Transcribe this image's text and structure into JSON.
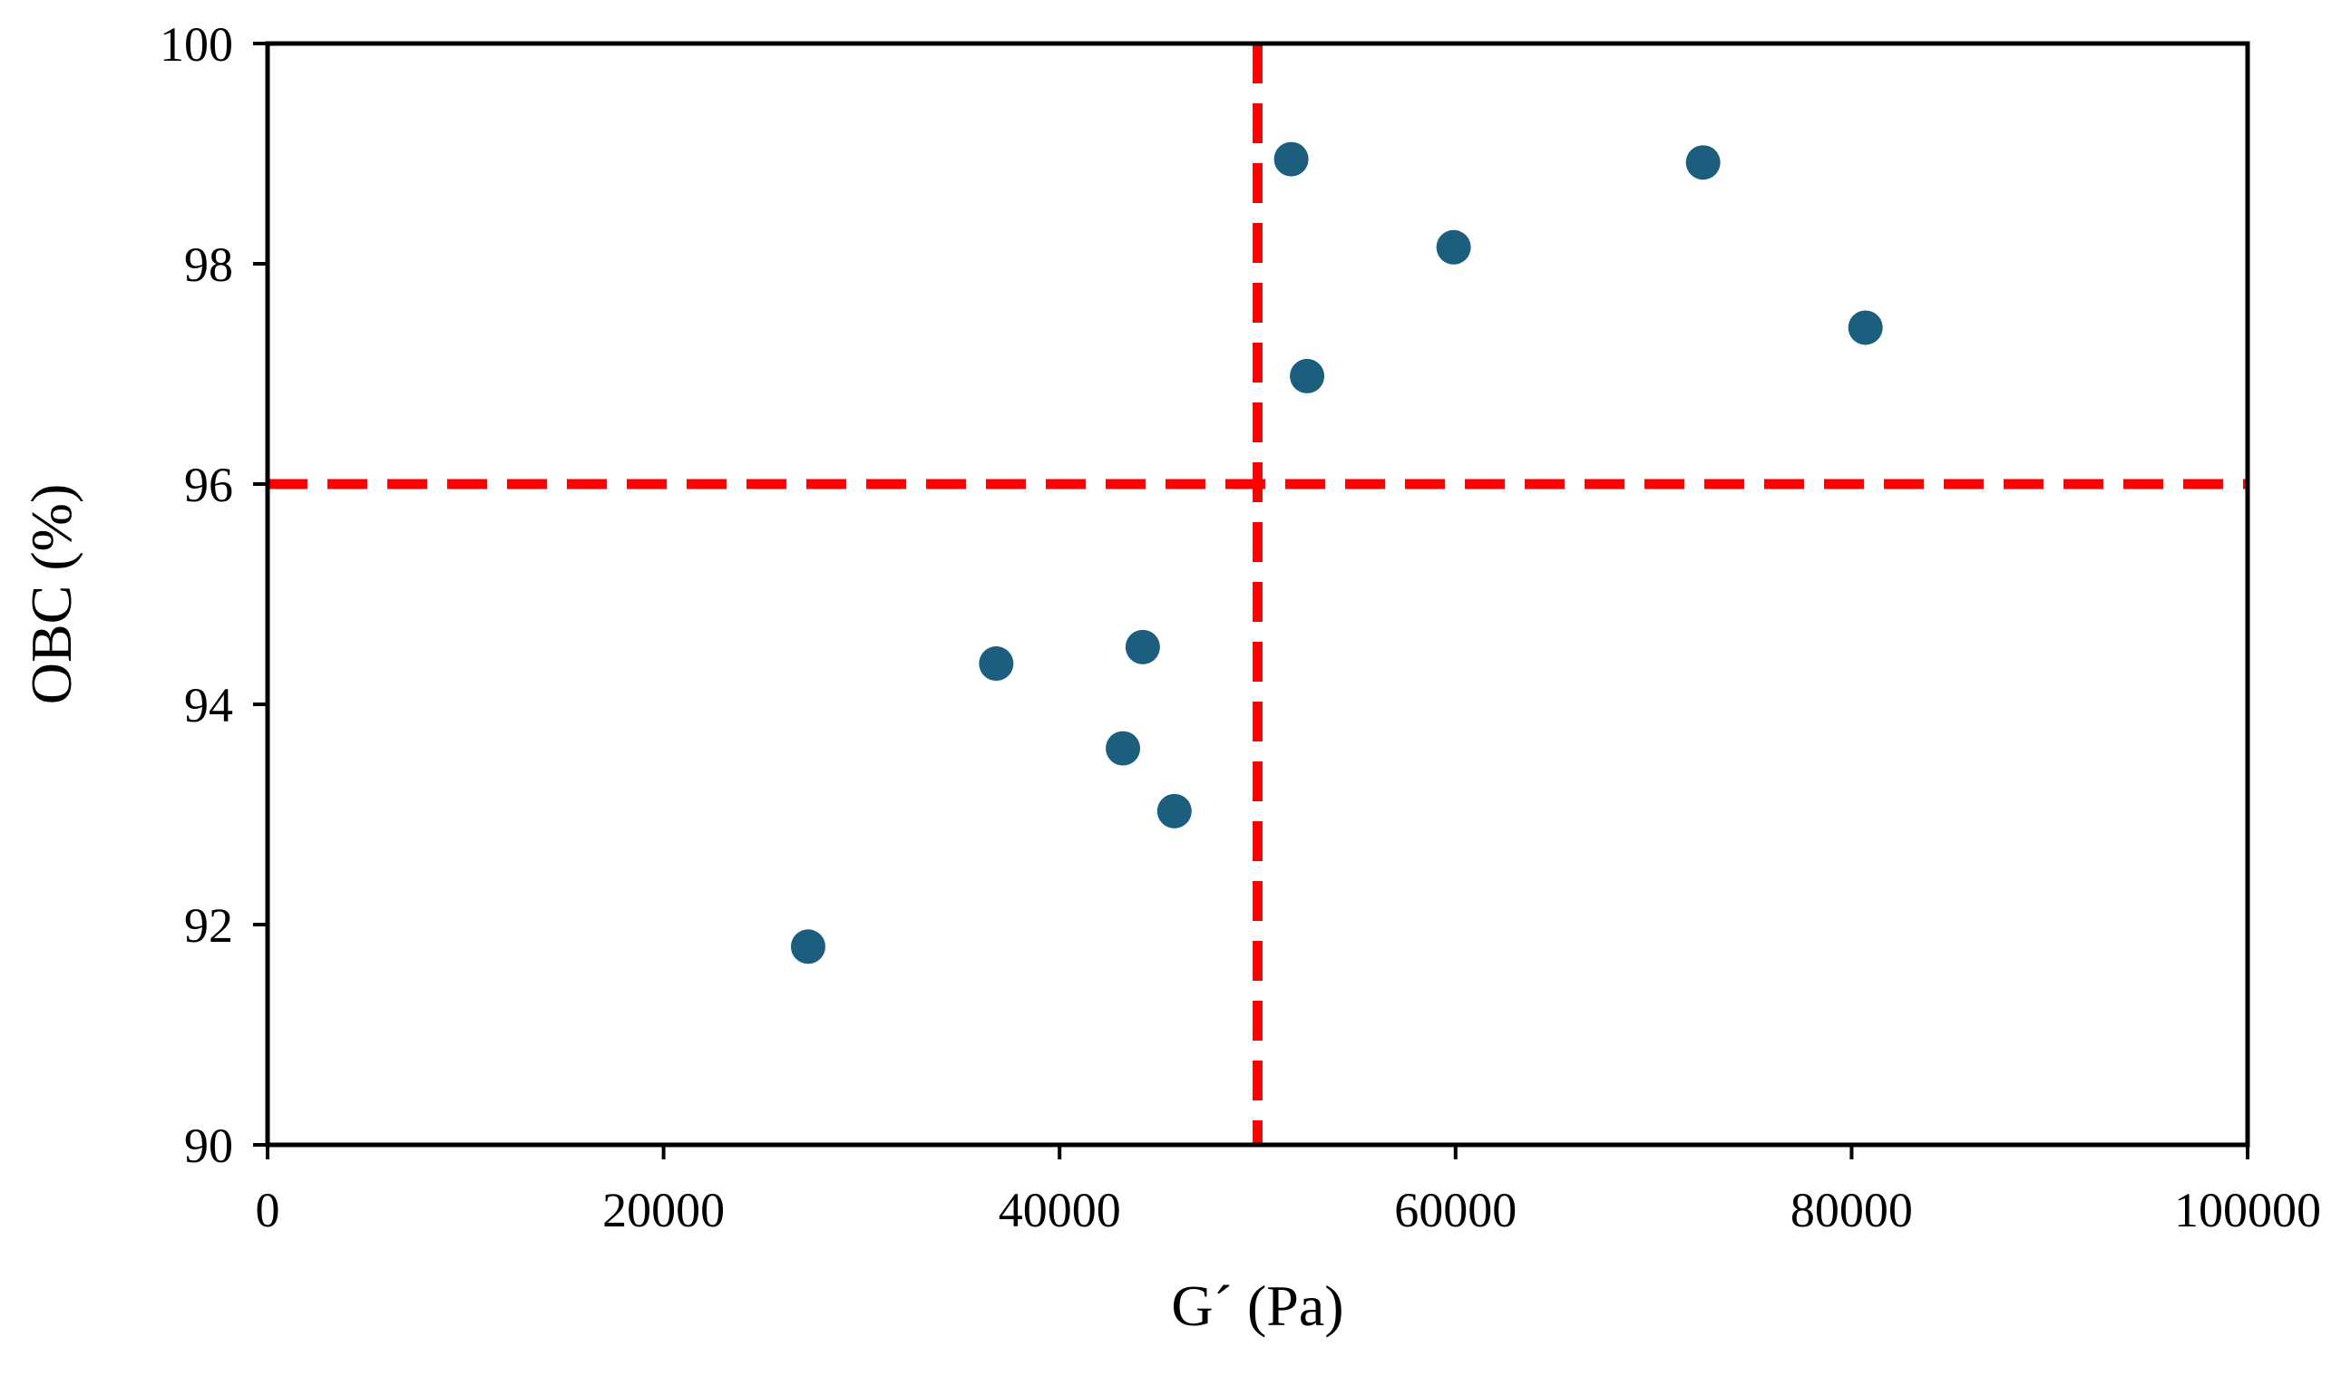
{
  "chart_data": {
    "type": "scatter",
    "title": "",
    "xlabel": "G´ (Pa)",
    "ylabel": "OBC (%)",
    "xlim": [
      0,
      100000
    ],
    "ylim": [
      90,
      100
    ],
    "xticks": [
      0,
      20000,
      40000,
      60000,
      80000,
      100000
    ],
    "yticks": [
      90,
      92,
      94,
      96,
      98,
      100
    ],
    "grid": false,
    "legend": "none",
    "colors": {
      "points": "#1b5e7e",
      "threshold": "#ff0000",
      "axes": "#000000"
    },
    "points": [
      {
        "x": 27300,
        "y": 91.8
      },
      {
        "x": 36800,
        "y": 94.37
      },
      {
        "x": 43200,
        "y": 93.6
      },
      {
        "x": 44200,
        "y": 94.52
      },
      {
        "x": 45800,
        "y": 93.03
      },
      {
        "x": 51700,
        "y": 98.95
      },
      {
        "x": 52500,
        "y": 96.98
      },
      {
        "x": 59900,
        "y": 98.15
      },
      {
        "x": 72500,
        "y": 98.92
      },
      {
        "x": 80700,
        "y": 97.42
      }
    ],
    "threshold_lines": {
      "x": 50000,
      "y": 96
    }
  }
}
